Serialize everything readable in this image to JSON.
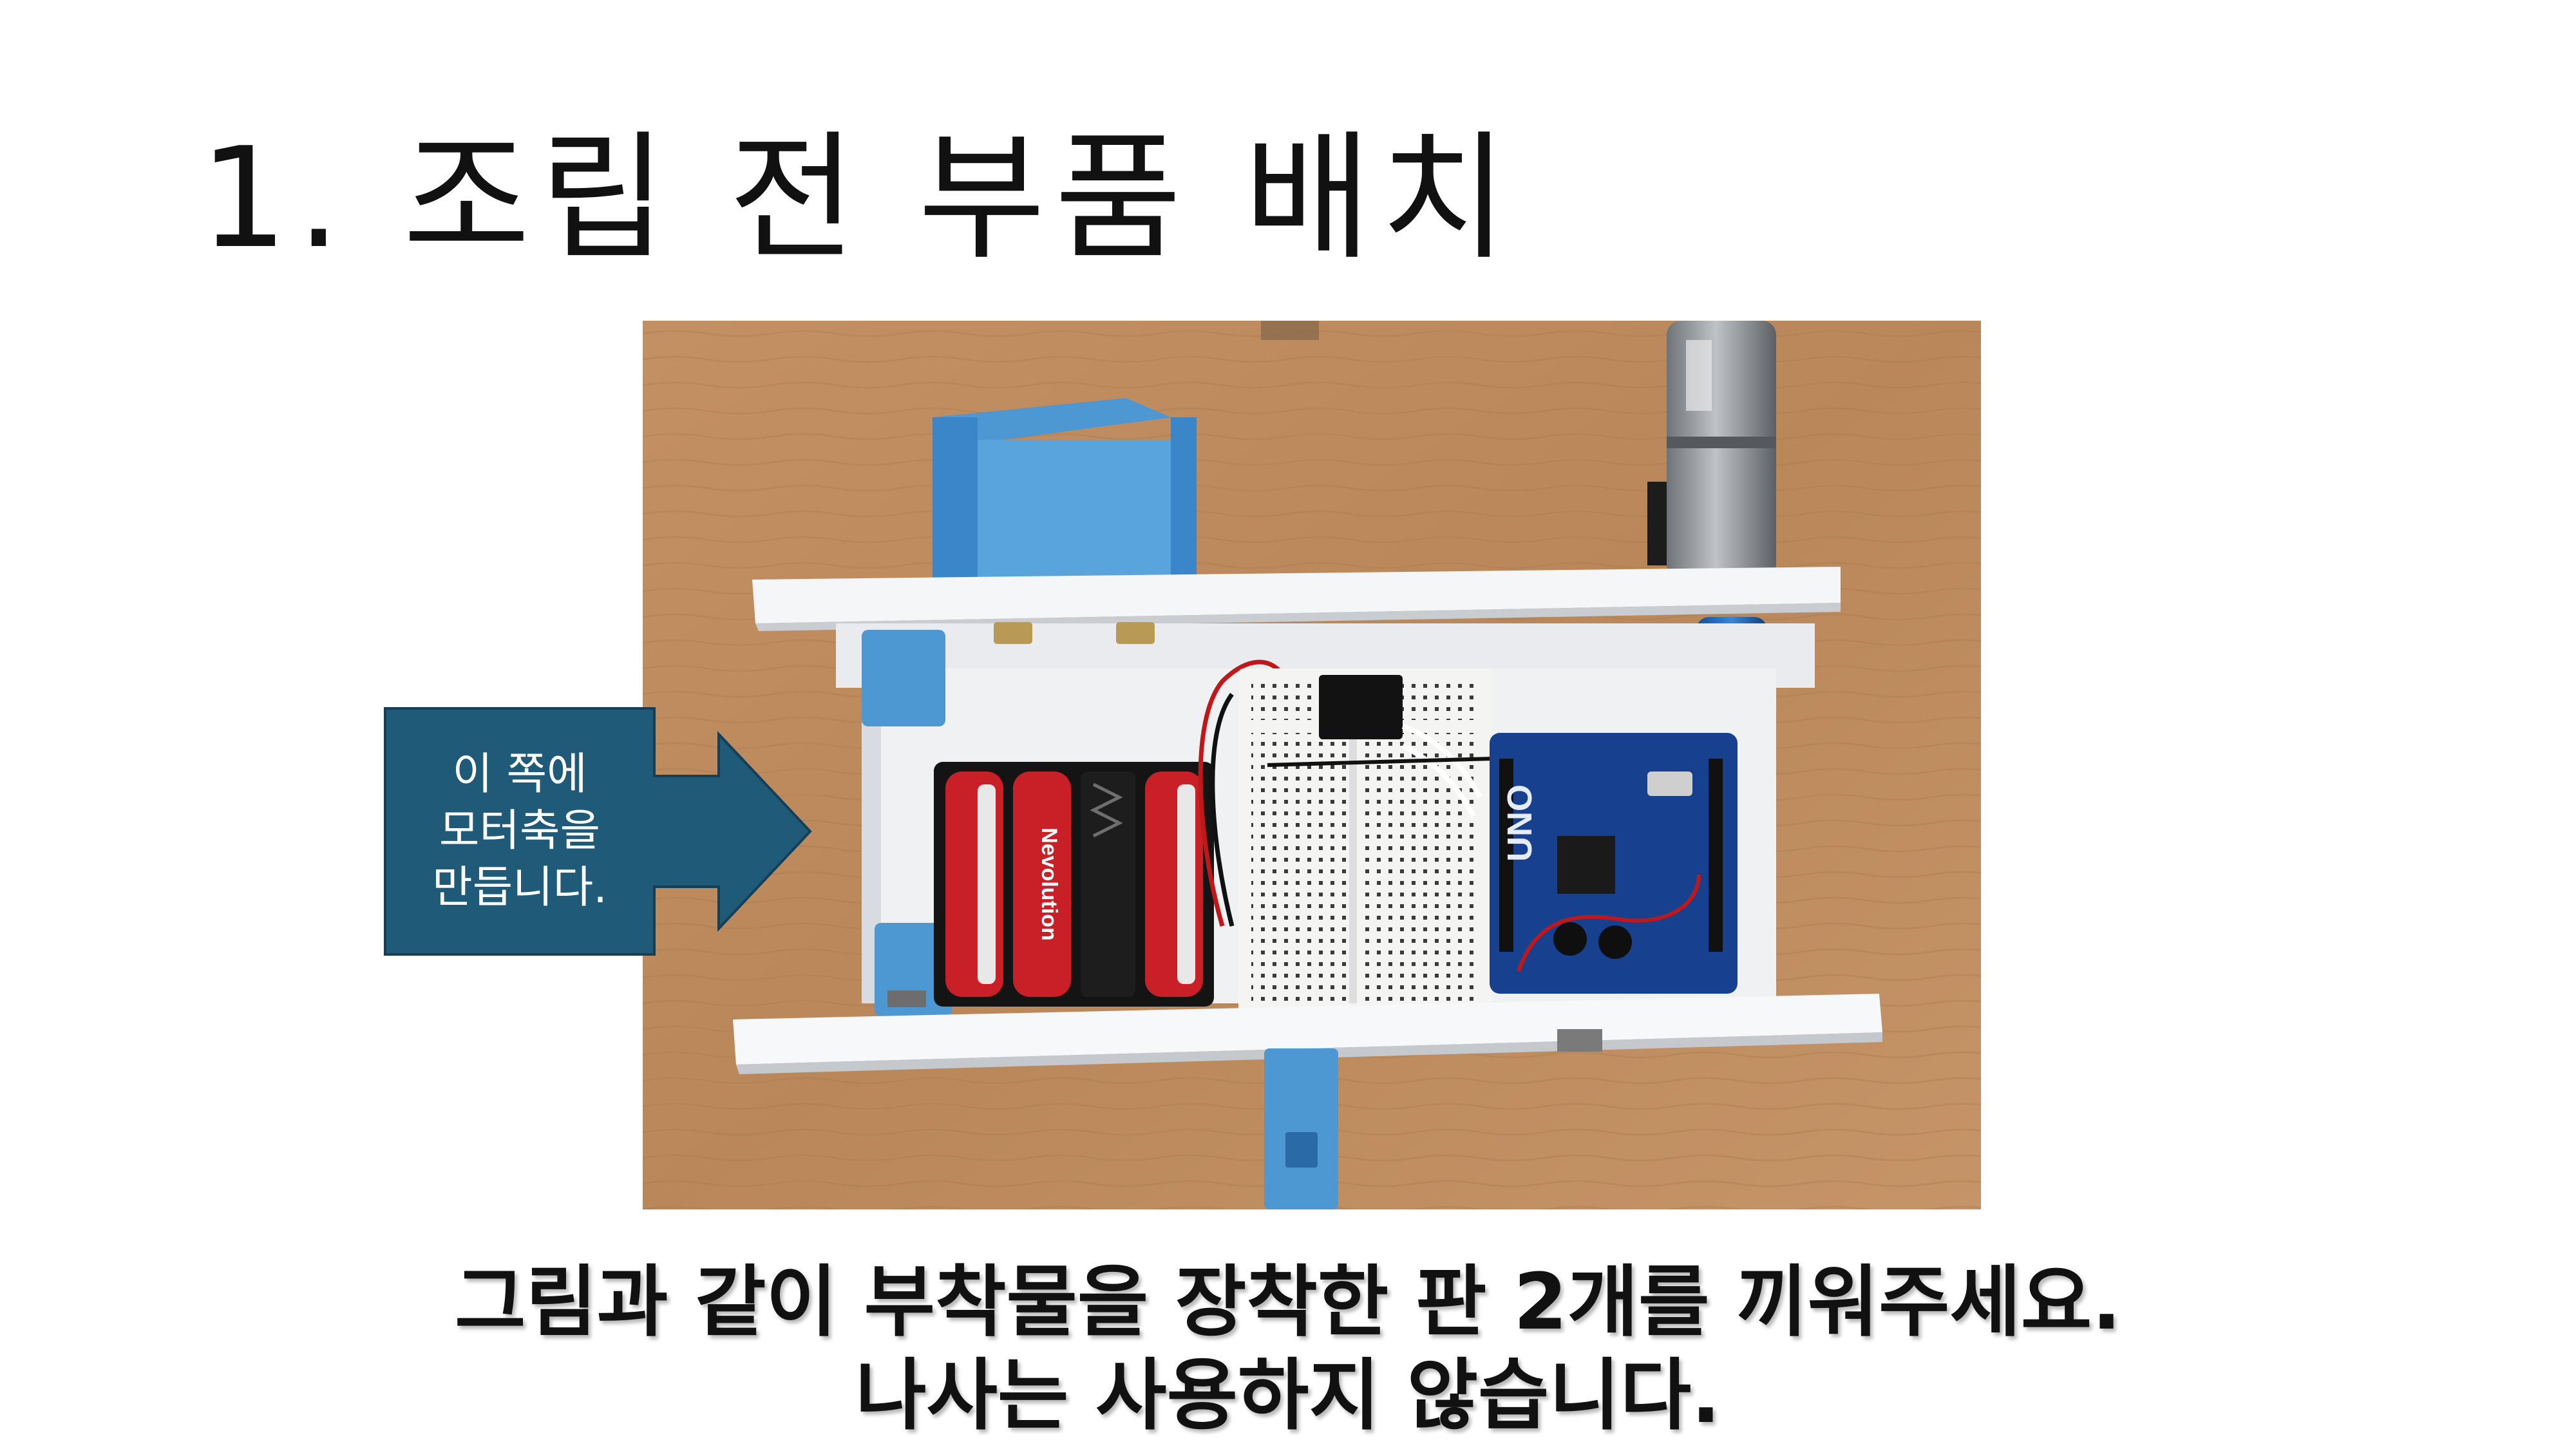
{
  "title": "1. 조립 전 부품 배치",
  "callout": {
    "lines": [
      "이 쪽에",
      "모터축을",
      "만듭니다."
    ],
    "fill": "#1F5A78"
  },
  "caption": {
    "line1": "그림과 같이 부착물을 장착한 판 2개를 끼워주세요.",
    "line2": "나사는 사용하지 않습니다."
  },
  "photo": {
    "labels": {
      "battery_brand": "Nevolution",
      "board_model": "UNO"
    }
  }
}
